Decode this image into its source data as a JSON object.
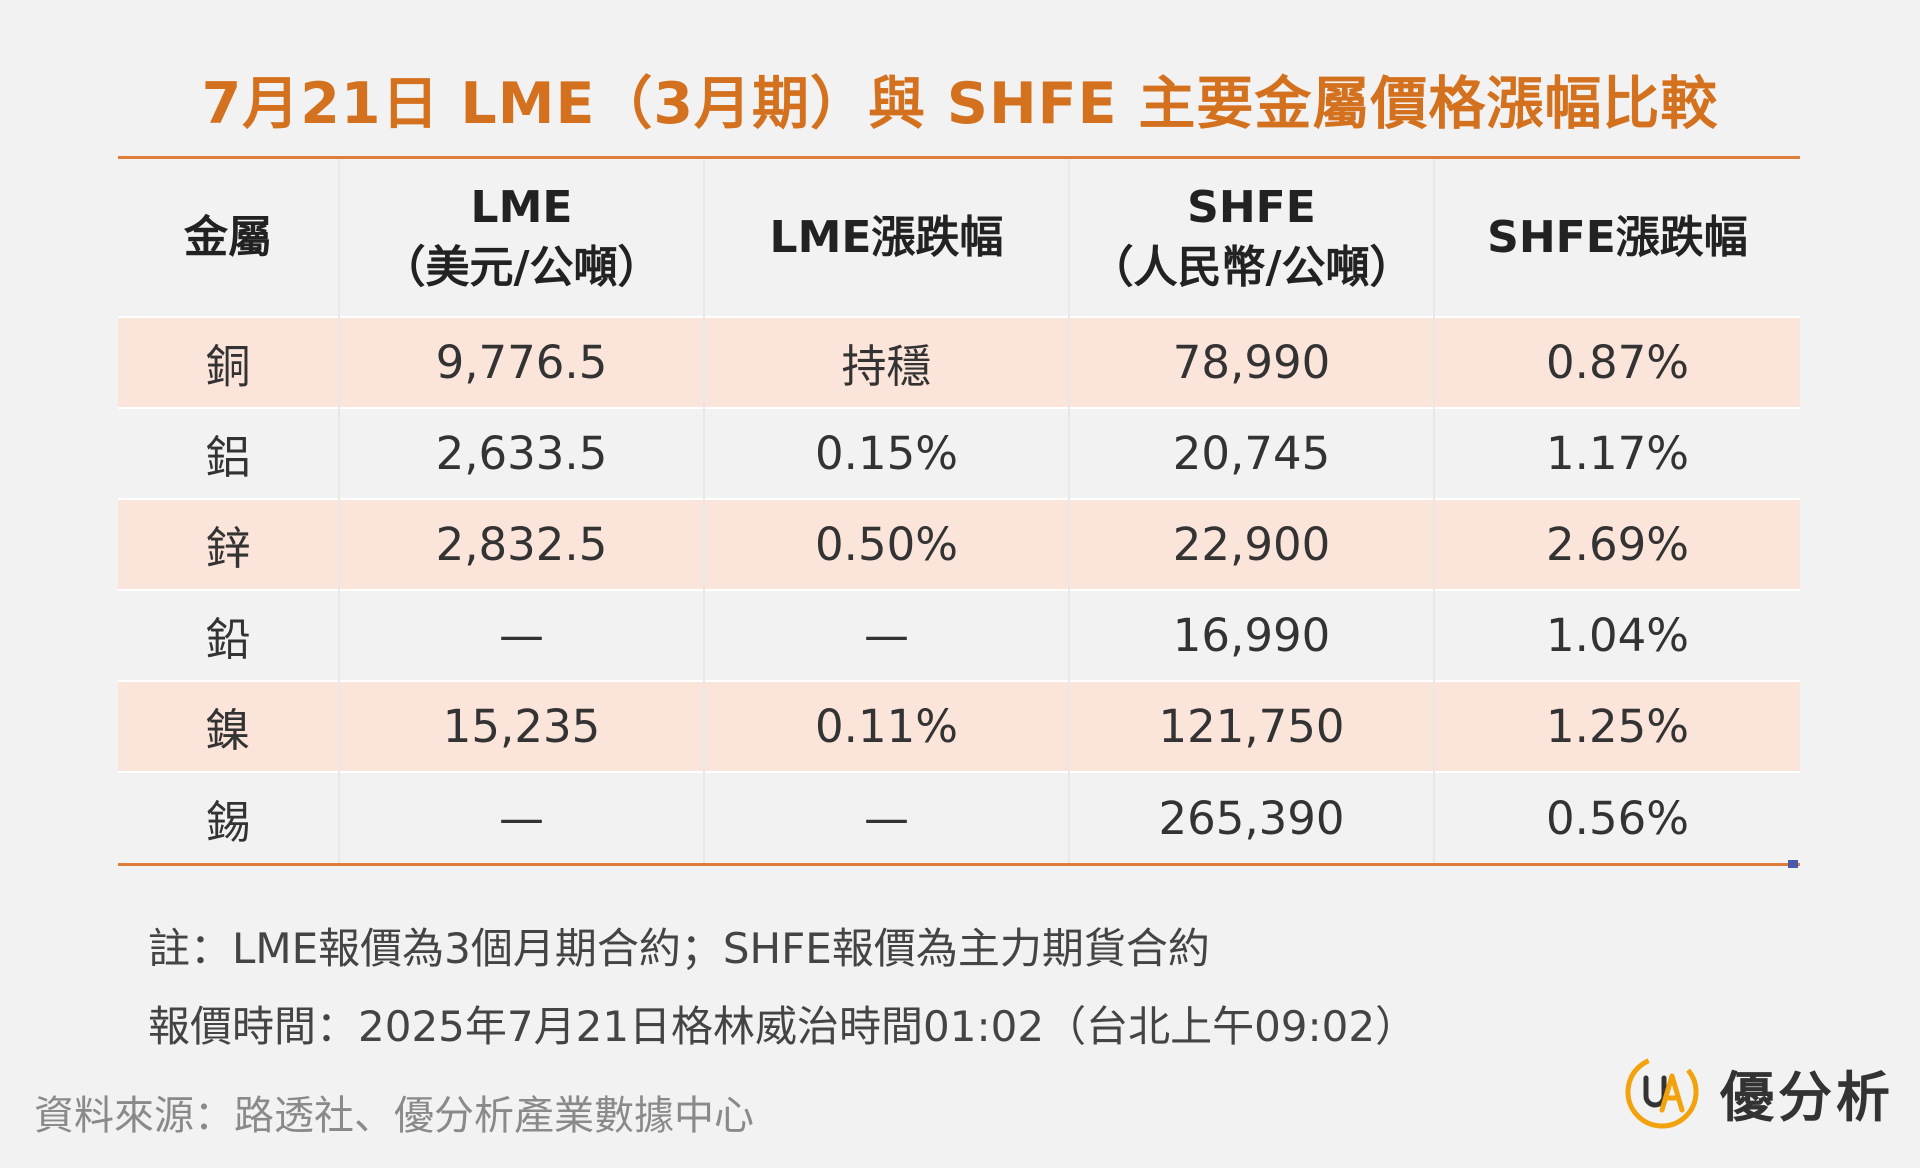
{
  "title": "7月21日 LME（3月期）與 SHFE 主要金屬價格漲幅比較",
  "table": {
    "headers": {
      "metal": "金屬",
      "lme_line1": "LME",
      "lme_line2": "（美元/公噸）",
      "lme_change": "LME漲跌幅",
      "shfe_line1": "SHFE",
      "shfe_line2": "（人民幣/公噸）",
      "shfe_change": "SHFE漲跌幅"
    },
    "rows": [
      {
        "metal": "銅",
        "lme": "9,776.5",
        "lme_change": "持穩",
        "shfe": "78,990",
        "shfe_change": "0.87%"
      },
      {
        "metal": "鋁",
        "lme": "2,633.5",
        "lme_change": "0.15%",
        "shfe": "20,745",
        "shfe_change": "1.17%"
      },
      {
        "metal": "鋅",
        "lme": "2,832.5",
        "lme_change": "0.50%",
        "shfe": "22,900",
        "shfe_change": "2.69%"
      },
      {
        "metal": "鉛",
        "lme": "—",
        "lme_change": "—",
        "shfe": "16,990",
        "shfe_change": "1.04%"
      },
      {
        "metal": "鎳",
        "lme": "15,235",
        "lme_change": "0.11%",
        "shfe": "121,750",
        "shfe_change": "1.25%"
      },
      {
        "metal": "錫",
        "lme": "—",
        "lme_change": "—",
        "shfe": "265,390",
        "shfe_change": "0.56%"
      }
    ]
  },
  "notes": {
    "note1": "註：LME報價為3個月期合約；SHFE報價為主力期貨合約",
    "note2": "報價時間：2025年7月21日格林威治時間01:02（台北上午09:02）"
  },
  "source": "資料來源：路透社、優分析產業數據中心",
  "logo": {
    "text": "優分析",
    "icon": "ua-logo-icon",
    "colors": {
      "ring": "#f2a20c",
      "letters": "#333333"
    }
  },
  "colors": {
    "title": "#d4711f",
    "rule": "#e07d3a",
    "row_shade": "#fbe4da",
    "background": "#f2f2f2"
  }
}
